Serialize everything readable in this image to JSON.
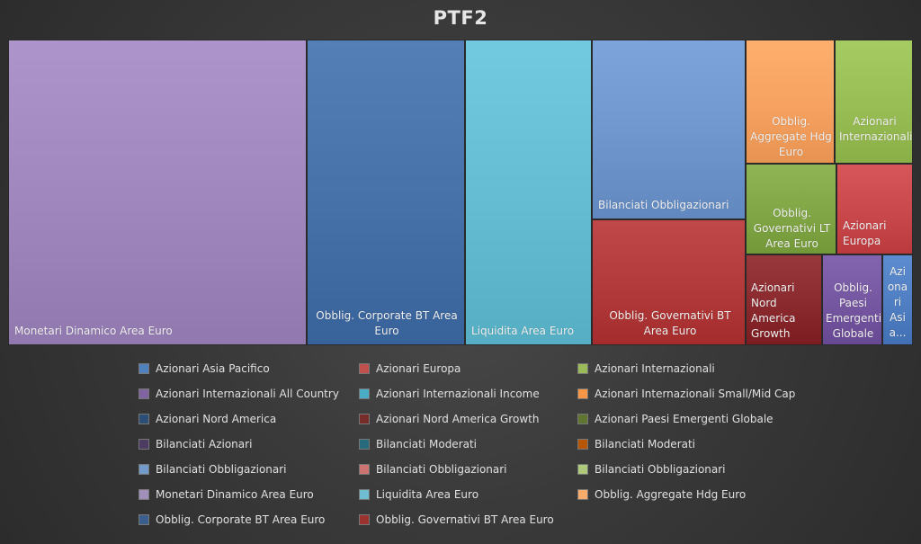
{
  "chart_data": {
    "type": "treemap",
    "title": "PTF2",
    "tiles": [
      {
        "label": "Monetari Dinamico Area Euro",
        "color": "#9f87bd"
      },
      {
        "label": "Obblig. Corporate BT Area Euro",
        "color": "#4670a8"
      },
      {
        "label": "Liquidita Area Euro",
        "color": "#63bcd1"
      },
      {
        "label": "Bilanciati Obbligazionari",
        "color": "#6f96cd"
      },
      {
        "label": "Obblig. Governativi BT Area Euro",
        "color": "#b23a3a"
      },
      {
        "label": "Obblig. Aggregate Hdg Euro",
        "color": "#f6a15f"
      },
      {
        "label": "Azionari Internazionali",
        "color": "#99bd55"
      },
      {
        "label": "Obblig. Governativi LT Area Euro",
        "color": "#81a646"
      },
      {
        "label": "Azionari Europa",
        "color": "#c9484c"
      },
      {
        "label": "Azionari Nord America Growth",
        "color": "#8a2a2e"
      },
      {
        "label": "Obblig. Paesi Emergenti Globale",
        "color": "#7556a0"
      },
      {
        "label": "Azi ona ri Asi a...",
        "color": "#4f7ec2"
      }
    ],
    "legend": [
      {
        "label": "Azionari Asia Pacifico",
        "color": "#4f81bd"
      },
      {
        "label": "Azionari Europa",
        "color": "#c0504d"
      },
      {
        "label": "Azionari Internazionali",
        "color": "#9bbb59"
      },
      {
        "label": "Azionari Internazionali All Country",
        "color": "#8064a2"
      },
      {
        "label": "Azionari Internazionali Income",
        "color": "#4bacc6"
      },
      {
        "label": "Azionari Internazionali Small/Mid Cap",
        "color": "#f79646"
      },
      {
        "label": "Azionari Nord America",
        "color": "#2c4d75"
      },
      {
        "label": "Azionari Nord America Growth",
        "color": "#772c2a"
      },
      {
        "label": "Azionari Paesi Emergenti Globale",
        "color": "#5f7530"
      },
      {
        "label": "Bilanciati Azionari",
        "color": "#4d3b62"
      },
      {
        "label": "Bilanciati Moderati",
        "color": "#276a7c"
      },
      {
        "label": "Bilanciati Moderati",
        "color": "#b65708"
      },
      {
        "label": "Bilanciati Obbligazionari",
        "color": "#729aca"
      },
      {
        "label": "Bilanciati Obbligazionari",
        "color": "#cd7371"
      },
      {
        "label": "Bilanciati Obbligazionari",
        "color": "#afc97a"
      },
      {
        "label": "Monetari Dinamico Area Euro",
        "color": "#a18fbb"
      },
      {
        "label": "Liquidita Area Euro",
        "color": "#6fbdd1"
      },
      {
        "label": "Obblig. Aggregate Hdg Euro",
        "color": "#f9ab6b"
      },
      {
        "label": "Obblig. Corporate BT Area Euro",
        "color": "#3a5f8f"
      },
      {
        "label": "Obblig. Governativi BT Area Euro",
        "color": "#9a3230"
      }
    ]
  }
}
